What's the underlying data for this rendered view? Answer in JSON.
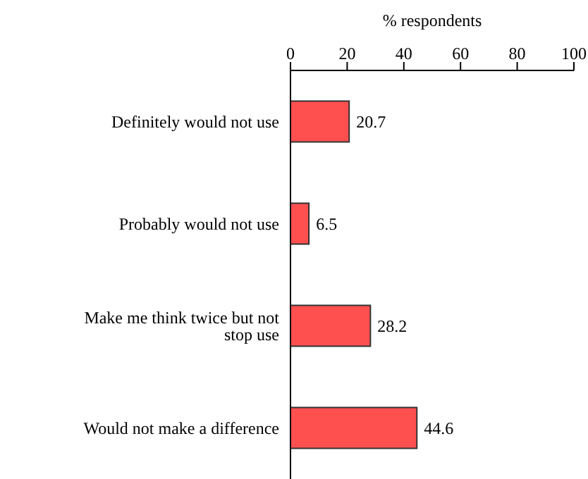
{
  "chart_data": {
    "type": "bar",
    "orientation": "horizontal",
    "xlabel": "% respondents",
    "categories": [
      "Definitely would not use",
      "Probably would not use",
      "Make me think twice but not stop use",
      "Would not make a difference"
    ],
    "values": [
      20.7,
      6.5,
      28.2,
      44.6
    ],
    "color": "#ff5050",
    "xlim": [
      0,
      100
    ],
    "xticks": [
      0,
      20,
      40,
      60,
      80,
      100
    ],
    "data_labels": true,
    "grid": false
  }
}
